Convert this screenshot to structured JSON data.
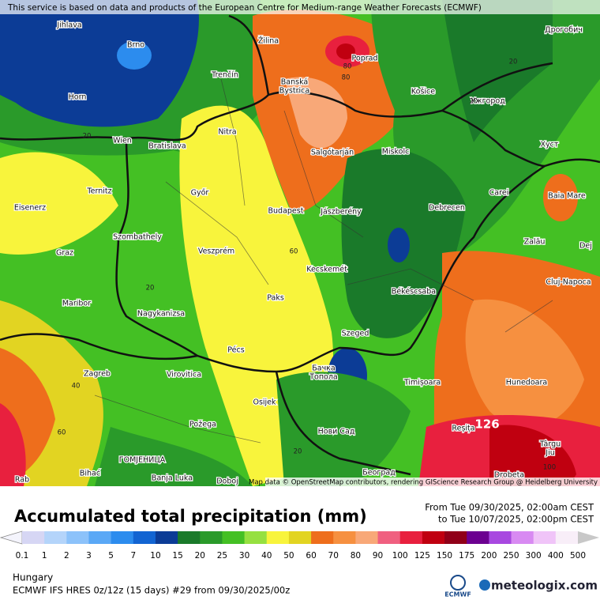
{
  "banner": "This service is based on data and products of the European Centre for Medium-range Weather Forecasts (ECMWF)",
  "attribution": "Map data © OpenStreetMap contributors, rendering GIScience Research Group @ Heidelberg University",
  "cities": [
    "Jihlava",
    "Brno",
    "Horn",
    "Wien",
    "Bratislava",
    "Trenčín",
    "Žilina",
    "Poprad",
    "Banská",
    "Bystrica",
    "Košice",
    "Ужгород",
    "Дрогобич",
    "Nitra",
    "Salgótarján",
    "Miskolc",
    "Хуст",
    "Ternitz",
    "Győr",
    "Budapest",
    "Jászberény",
    "Debrecen",
    "Carei",
    "Baia Mare",
    "Eisenerz",
    "Szombathely",
    "Veszprém",
    "Zalău",
    "Graz",
    "Kecskemét",
    "Cluj-Napoca",
    "Maribor",
    "Paks",
    "Békéscsaba",
    "Nagykanizsa",
    "Pécs",
    "Szeged",
    "Zagreb",
    "Virovitica",
    "Бачка",
    "Топола",
    "Timișoara",
    "Hunedoara",
    "Osijek",
    "Požega",
    "Нови Сад",
    "Reșița",
    "Târgu",
    "Jiu",
    "Banja Luka",
    "Bihać",
    "Doboj",
    "Београд",
    "Drobeta",
    "ГОМЈЕНИЦА",
    "Rab",
    "Dej"
  ],
  "contour_labels": [
    20,
    20,
    20,
    80,
    80,
    60,
    20,
    40,
    60,
    126,
    100,
    20
  ],
  "title": "Accumulated total precipitation (mm)",
  "period": {
    "from": "From Tue 09/30/2025, 02:00am CEST",
    "to": "to Tue 10/07/2025, 02:00pm CEST"
  },
  "legend": {
    "items": [
      {
        "label": 0.1,
        "color": "#d6d6f4"
      },
      {
        "label": 1,
        "color": "#b4d4fa"
      },
      {
        "label": 2,
        "color": "#8cc2fa"
      },
      {
        "label": 3,
        "color": "#5aa8f6"
      },
      {
        "label": 5,
        "color": "#2c8cee"
      },
      {
        "label": 7,
        "color": "#1264d2"
      },
      {
        "label": 10,
        "color": "#0c3c96"
      },
      {
        "label": 15,
        "color": "#1a7a2a"
      },
      {
        "label": 20,
        "color": "#2a9a2a"
      },
      {
        "label": 25,
        "color": "#44c024"
      },
      {
        "label": 30,
        "color": "#96e040"
      },
      {
        "label": 40,
        "color": "#f8f43c"
      },
      {
        "label": 50,
        "color": "#e2d422"
      },
      {
        "label": 60,
        "color": "#ee6e1c"
      },
      {
        "label": 70,
        "color": "#f69040"
      },
      {
        "label": 80,
        "color": "#f8a878"
      },
      {
        "label": 90,
        "color": "#f06080"
      },
      {
        "label": 100,
        "color": "#e8203e"
      },
      {
        "label": 125,
        "color": "#c00010"
      },
      {
        "label": 150,
        "color": "#900018"
      },
      {
        "label": 175,
        "color": "#6c0090"
      },
      {
        "label": 200,
        "color": "#a848e0"
      },
      {
        "label": 250,
        "color": "#d88af2"
      },
      {
        "label": 300,
        "color": "#f0c4f8"
      },
      {
        "label": 400,
        "color": "#f8eef8"
      },
      {
        "label": 500,
        "color": "#c8c8c8"
      }
    ]
  },
  "footer": {
    "region": "Hungary",
    "model": "ECMWF IFS HRES 0z/12z (15 days) #29 from  09/30/2025/00z",
    "ecmwf": "ECMWF",
    "brand": "meteologix.com"
  }
}
